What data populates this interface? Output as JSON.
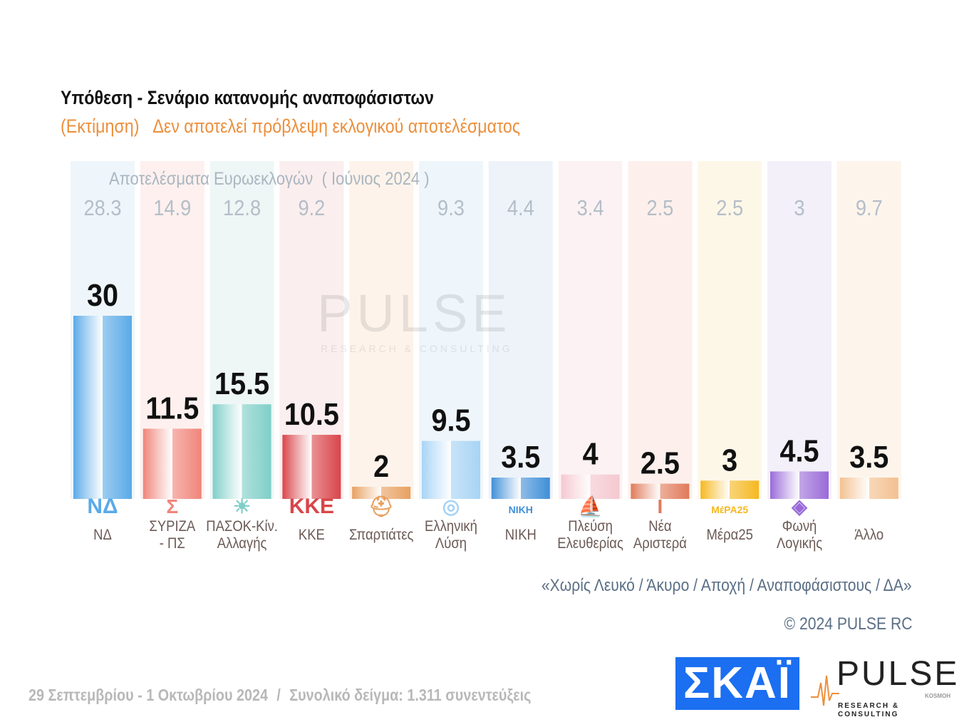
{
  "header": {
    "title": "Υπόθεση - Σενάριο κατανομής αναποφάσιστων",
    "subtitle_prefix": "(Εκτίμηση)",
    "subtitle": "Δεν αποτελεί πρόβλεψη εκλογικού αποτελέσματος"
  },
  "chart_data": {
    "type": "bar",
    "title": "Υπόθεση - Σενάριο κατανομής αναποφάσιστων",
    "categories": [
      "ΝΔ",
      "ΣΥΡΙΖΑ - ΠΣ",
      "ΠΑΣΟΚ-Κίν. Αλλαγής",
      "ΚΚΕ",
      "Σπαρτιάτες",
      "Ελληνική Λύση",
      "ΝΙΚΗ",
      "Πλεύση Ελευθερίας",
      "Νέα Αριστερά",
      "Μέρα25",
      "Φωνή Λογικής",
      "Άλλο"
    ],
    "category_lines": [
      [
        "ΝΔ"
      ],
      [
        "ΣΥΡΙΖΑ",
        "- ΠΣ"
      ],
      [
        "ΠΑΣΟΚ-Κίν.",
        "Αλλαγής"
      ],
      [
        "ΚΚΕ"
      ],
      [
        "Σπαρτιάτες"
      ],
      [
        "Ελληνική",
        "Λύση"
      ],
      [
        "ΝΙΚΗ"
      ],
      [
        "Πλεύση",
        "Ελευθερίας"
      ],
      [
        "Νέα",
        "Αριστερά"
      ],
      [
        "Μέρα25"
      ],
      [
        "Φωνή",
        "Λογικής"
      ],
      [
        "Άλλο"
      ]
    ],
    "series": [
      {
        "name": "Εκτίμηση",
        "values": [
          30,
          11.5,
          15.5,
          10.5,
          2,
          9.5,
          3.5,
          4,
          2.5,
          3,
          4.5,
          3.5
        ],
        "labels": [
          "30",
          "11.5",
          "15.5",
          "10.5",
          "2",
          "9.5",
          "3.5",
          "4",
          "2.5",
          "3",
          "4.5",
          "3.5"
        ]
      },
      {
        "name": "Αποτελέσματα Ευρωεκλογών ( Ιούνιος 2024 )",
        "values": [
          28.3,
          14.9,
          12.8,
          9.2,
          null,
          9.3,
          4.4,
          3.4,
          2.5,
          2.5,
          3,
          9.7
        ],
        "labels": [
          "28.3",
          "14.9",
          "12.8",
          "9.2",
          "",
          "9.3",
          "4.4",
          "3.4",
          "2.5",
          "2.5",
          "3",
          "9.7"
        ]
      }
    ],
    "euro_label_a": "Αποτελέσματα Ευρωεκλογών",
    "euro_label_b": "( Ιούνιος 2024 )",
    "colors": [
      "#5aaae8",
      "#f0857a",
      "#7fcfc8",
      "#d9454a",
      "#e8a060",
      "#a8d4f5",
      "#3f8fd8",
      "#f5c8d0",
      "#e07a5a",
      "#f5b820",
      "#9a6ad8",
      "#f3c090"
    ],
    "bg_colors": [
      "#eef6fb",
      "#fdf0ee",
      "#eef6f6",
      "#fbeeee",
      "#fdf3ea",
      "#eef6fb",
      "#eef3f9",
      "#fcf2f3",
      "#fdf0ec",
      "#fdf7e8",
      "#f3f0f9",
      "#fdf5ec"
    ],
    "logos": [
      "ΝΔ",
      "Σ",
      "☀",
      "ΚΚΕ",
      "⛑",
      "◎",
      "ΝΙΚΗ",
      "⛵",
      "Ι",
      "ΜέΡΑ25",
      "◈",
      ""
    ],
    "ylim": [
      0,
      32
    ],
    "grid": false,
    "legend": "none"
  },
  "watermark": {
    "big": "PULSE",
    "small": "RESEARCH & CONSULTING"
  },
  "notes": {
    "exclusion": "«Χωρίς Λευκό / Άκυρο / Αποχή / Αναποφάσιστους / ΔΑ»",
    "copyright": "© 2024 PULSE RC"
  },
  "footer": {
    "dates": "29 Σεπτεμβρίου - 1 Οκτωβρίου 2024",
    "sep": "/",
    "sample": "Συνολικό δείγμα:  1.311 συνεντεύξεις"
  },
  "brand": {
    "skai": "ΣΚΑΪ",
    "pulse": "PULSE",
    "pulse_sub": "RESEARCH & CONSULTING",
    "pulse_k": "KOSMOH"
  }
}
